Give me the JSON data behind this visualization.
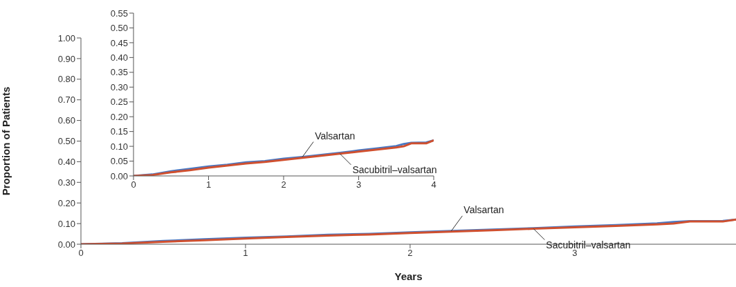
{
  "chart_data": [
    {
      "type": "line",
      "xlabel": "Years",
      "ylabel": "Proportion of Patients",
      "xlim": [
        0,
        3.98
      ],
      "xticks": [
        0,
        1,
        2,
        3
      ],
      "ylim": [
        0,
        1
      ],
      "yticks": [
        {
          "value": 0,
          "label": "0.00"
        },
        {
          "value": 0.1,
          "label": "0.10"
        },
        {
          "value": 0.2,
          "label": "0.20"
        },
        {
          "value": 0.3,
          "label": "0.30"
        },
        {
          "value": 0.4,
          "label": "0.40"
        },
        {
          "value": 0.5,
          "label": "0.50"
        },
        {
          "value": 0.6,
          "label": "0.60"
        },
        {
          "value": 0.7,
          "label": "0.70"
        },
        {
          "value": 0.8,
          "label": "0.80"
        },
        {
          "value": 0.9,
          "label": "0.90"
        },
        {
          "value": 1,
          "label": "1.00"
        }
      ],
      "series": [
        {
          "name": "Valsartan",
          "color": "#4a78c2",
          "x": [
            0,
            0.25,
            0.5,
            0.75,
            1,
            1.25,
            1.5,
            1.75,
            2,
            2.25,
            2.5,
            2.75,
            3,
            3.25,
            3.5,
            3.6,
            3.7,
            3.9,
            3.98
          ],
          "values": [
            0,
            0.005,
            0.016,
            0.024,
            0.032,
            0.038,
            0.046,
            0.05,
            0.058,
            0.064,
            0.071,
            0.078,
            0.086,
            0.093,
            0.101,
            0.108,
            0.112,
            0.113,
            0.12
          ]
        },
        {
          "name": "Sacubitril–valsartan",
          "color": "#d0502f",
          "x": [
            0,
            0.25,
            0.5,
            0.75,
            1,
            1.25,
            1.5,
            1.75,
            2,
            2.25,
            2.5,
            2.75,
            3,
            3.25,
            3.5,
            3.6,
            3.7,
            3.9,
            3.98
          ],
          "values": [
            0,
            0.003,
            0.012,
            0.019,
            0.028,
            0.035,
            0.042,
            0.047,
            0.054,
            0.061,
            0.068,
            0.075,
            0.082,
            0.089,
            0.096,
            0.1,
            0.11,
            0.11,
            0.12
          ]
        }
      ]
    },
    {
      "type": "line",
      "xlim": [
        0,
        4
      ],
      "xticks": [
        0,
        1,
        2,
        3,
        4
      ],
      "ylim": [
        0,
        0.55
      ],
      "yticks": [
        {
          "value": 0,
          "label": "0.00"
        },
        {
          "value": 0.05,
          "label": "0.05"
        },
        {
          "value": 0.1,
          "label": "0.10"
        },
        {
          "value": 0.15,
          "label": "0.15"
        },
        {
          "value": 0.2,
          "label": "0.20"
        },
        {
          "value": 0.25,
          "label": "0.25"
        },
        {
          "value": 0.3,
          "label": "0.30"
        },
        {
          "value": 0.35,
          "label": "0.35"
        },
        {
          "value": 0.4,
          "label": "0.40"
        },
        {
          "value": 0.45,
          "label": "0.45"
        },
        {
          "value": 0.5,
          "label": "0.50"
        },
        {
          "value": 0.55,
          "label": "0.55"
        }
      ],
      "series": [
        {
          "name": "Valsartan",
          "color": "#4a78c2",
          "x": [
            0,
            0.25,
            0.5,
            0.75,
            1,
            1.25,
            1.5,
            1.75,
            2,
            2.25,
            2.5,
            2.75,
            3,
            3.25,
            3.5,
            3.6,
            3.7,
            3.9,
            4
          ],
          "values": [
            0,
            0.005,
            0.016,
            0.024,
            0.032,
            0.038,
            0.046,
            0.05,
            0.058,
            0.064,
            0.071,
            0.078,
            0.086,
            0.093,
            0.101,
            0.108,
            0.112,
            0.113,
            0.12
          ]
        },
        {
          "name": "Sacubitril–valsartan",
          "color": "#d0502f",
          "x": [
            0,
            0.25,
            0.5,
            0.75,
            1,
            1.25,
            1.5,
            1.75,
            2,
            2.25,
            2.5,
            2.75,
            3,
            3.25,
            3.5,
            3.6,
            3.7,
            3.9,
            4
          ],
          "values": [
            0,
            0.003,
            0.012,
            0.019,
            0.028,
            0.035,
            0.042,
            0.047,
            0.054,
            0.061,
            0.068,
            0.075,
            0.082,
            0.089,
            0.096,
            0.1,
            0.11,
            0.11,
            0.12
          ]
        }
      ]
    }
  ]
}
